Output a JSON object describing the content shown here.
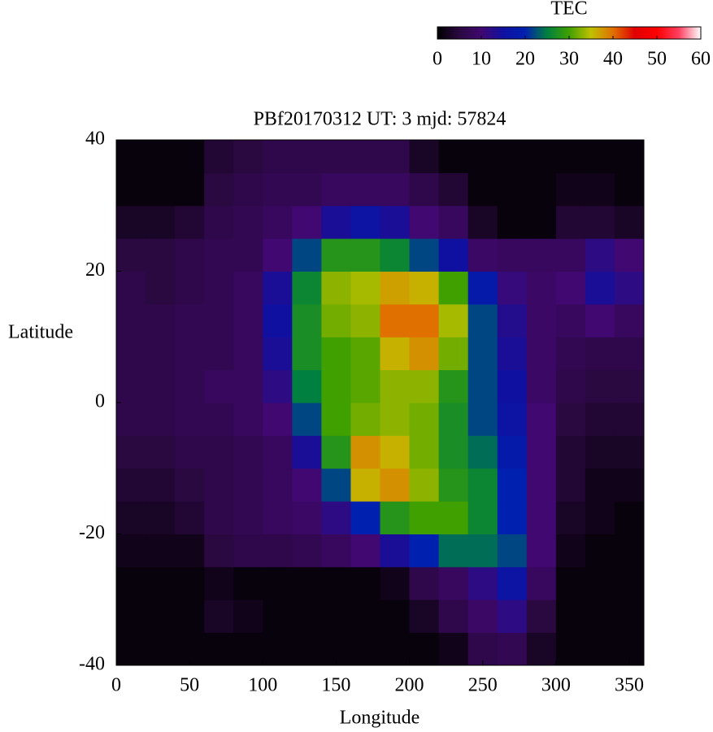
{
  "chart_data": {
    "type": "heatmap",
    "title": "PBf20170312  UT: 3  mjd: 57824",
    "x_label": "Longitude",
    "y_label": "Latitude",
    "x": [
      10,
      30,
      50,
      70,
      90,
      110,
      130,
      150,
      170,
      190,
      210,
      230,
      250,
      270,
      290,
      310,
      330,
      350
    ],
    "y": [
      -37.5,
      -32.5,
      -27.5,
      -22.5,
      -17.5,
      -12.5,
      -7.5,
      -2.5,
      2.5,
      7.5,
      12.5,
      17.5,
      22.5,
      27.5,
      32.5,
      37.5
    ],
    "z": [
      [
        1,
        1,
        1,
        1,
        1,
        1,
        1,
        1,
        1,
        1,
        1,
        2,
        6,
        7,
        3,
        1,
        1,
        1
      ],
      [
        1,
        1,
        1,
        3,
        2,
        1,
        1,
        1,
        1,
        1,
        3,
        6,
        9,
        12,
        5,
        1,
        1,
        1
      ],
      [
        1,
        1,
        1,
        2,
        1,
        1,
        1,
        1,
        1,
        2,
        6,
        8,
        12,
        16,
        8,
        1,
        1,
        1
      ],
      [
        2,
        2,
        2,
        5,
        6,
        6,
        7,
        8,
        10,
        14,
        20,
        24,
        24,
        22,
        10,
        2,
        1,
        1
      ],
      [
        3,
        3,
        4,
        6,
        7,
        8,
        9,
        12,
        20,
        28,
        30,
        30,
        26,
        20,
        10,
        3,
        2,
        1
      ],
      [
        4,
        4,
        5,
        6,
        7,
        8,
        10,
        22,
        36,
        38,
        33,
        28,
        26,
        20,
        10,
        4,
        2,
        2
      ],
      [
        5,
        5,
        6,
        6,
        7,
        8,
        14,
        28,
        38,
        36,
        32,
        27,
        24,
        18,
        10,
        4,
        3,
        3
      ],
      [
        6,
        6,
        7,
        7,
        8,
        10,
        22,
        30,
        32,
        33,
        32,
        27,
        22,
        16,
        10,
        5,
        4,
        4
      ],
      [
        6,
        6,
        7,
        8,
        8,
        12,
        25,
        30,
        31,
        33,
        33,
        28,
        22,
        15,
        9,
        6,
        5,
        5
      ],
      [
        6,
        6,
        7,
        7,
        8,
        14,
        27,
        30,
        31,
        36,
        38,
        32,
        22,
        14,
        9,
        7,
        6,
        6
      ],
      [
        6,
        6,
        7,
        7,
        8,
        15,
        27,
        32,
        33,
        40,
        40,
        34,
        22,
        13,
        9,
        8,
        10,
        8
      ],
      [
        6,
        5,
        6,
        7,
        8,
        14,
        26,
        33,
        34,
        37,
        36,
        30,
        18,
        11,
        9,
        10,
        14,
        12
      ],
      [
        5,
        5,
        6,
        7,
        7,
        10,
        22,
        28,
        28,
        26,
        22,
        15,
        9,
        8,
        8,
        8,
        12,
        10
      ],
      [
        3,
        3,
        4,
        6,
        7,
        8,
        10,
        14,
        16,
        14,
        10,
        8,
        3,
        1,
        1,
        4,
        4,
        3
      ],
      [
        1,
        1,
        1,
        5,
        6,
        7,
        7,
        8,
        8,
        8,
        6,
        4,
        1,
        1,
        1,
        2,
        2,
        1
      ],
      [
        1,
        1,
        1,
        4,
        5,
        6,
        6,
        6,
        6,
        6,
        3,
        1,
        1,
        1,
        1,
        1,
        1,
        1
      ]
    ],
    "xlim": [
      0,
      360
    ],
    "xticks": [
      0,
      50,
      100,
      150,
      200,
      250,
      300,
      350
    ],
    "ylim": [
      -40,
      40
    ],
    "yticks": [
      -40,
      -20,
      0,
      20,
      40
    ],
    "colorbar": {
      "label": "TEC",
      "zlim": [
        0,
        60
      ],
      "zticks": [
        0,
        10,
        20,
        30,
        40,
        50,
        60
      ],
      "colors": [
        "#000000",
        "#2a0840",
        "#400870",
        "#1010a0",
        "#0020b0",
        "#008040",
        "#40a000",
        "#c0c000",
        "#e07000",
        "#e00000",
        "#ff0000",
        "#ff4060",
        "#ffffff"
      ]
    }
  }
}
